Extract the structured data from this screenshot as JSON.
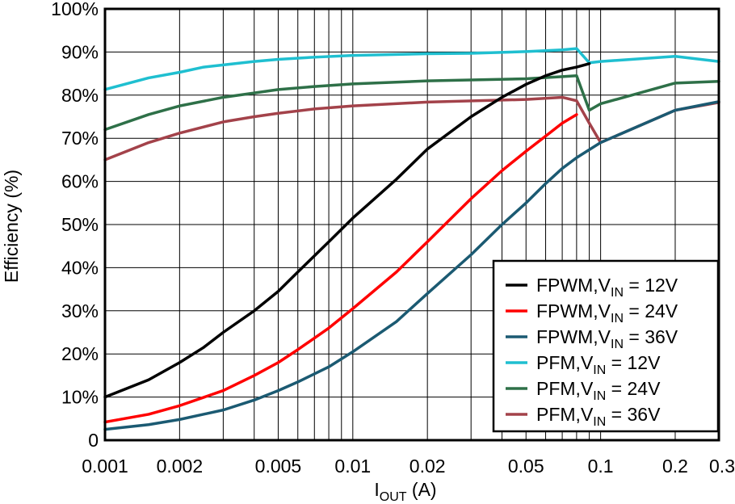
{
  "chart_data": {
    "type": "line",
    "title": "",
    "xlabel": {
      "main": "I",
      "sub": "OUT",
      "rest": " (A)"
    },
    "ylabel": "Efficiency (%)",
    "xscale": "log",
    "xlim": [
      0.001,
      0.3
    ],
    "ylim": [
      0,
      100
    ],
    "x_ticks": [
      {
        "value": 0.001,
        "label": "0.001"
      },
      {
        "value": 0.002,
        "label": "0.002"
      },
      {
        "value": 0.005,
        "label": "0.005"
      },
      {
        "value": 0.01,
        "label": "0.01"
      },
      {
        "value": 0.02,
        "label": "0.02"
      },
      {
        "value": 0.05,
        "label": "0.05"
      },
      {
        "value": 0.1,
        "label": "0.1"
      },
      {
        "value": 0.2,
        "label": "0.2"
      },
      {
        "value": 0.3,
        "label": "0.3"
      }
    ],
    "x_grid": [
      0.001,
      0.002,
      0.003,
      0.004,
      0.005,
      0.006,
      0.007,
      0.008,
      0.009,
      0.01,
      0.02,
      0.03,
      0.04,
      0.05,
      0.06,
      0.07,
      0.08,
      0.09,
      0.1,
      0.2,
      0.3
    ],
    "y_ticks": [
      {
        "value": 0,
        "label": "0"
      },
      {
        "value": 10,
        "label": "10%"
      },
      {
        "value": 20,
        "label": "20%"
      },
      {
        "value": 30,
        "label": "30%"
      },
      {
        "value": 40,
        "label": "40%"
      },
      {
        "value": 50,
        "label": "50%"
      },
      {
        "value": 60,
        "label": "60%"
      },
      {
        "value": 70,
        "label": "70%"
      },
      {
        "value": 80,
        "label": "80%"
      },
      {
        "value": 90,
        "label": "90%"
      },
      {
        "value": 100,
        "label": "100%"
      }
    ],
    "grid": true,
    "legend_position": "bottom-right",
    "series": [
      {
        "name": "FPWM,VIN = 12V",
        "legend": {
          "pre": "FPWM,V",
          "sub": "IN",
          "post": " = 12V"
        },
        "color": "#000000",
        "points": [
          [
            0.001,
            10
          ],
          [
            0.0015,
            14
          ],
          [
            0.002,
            18
          ],
          [
            0.0025,
            21.5
          ],
          [
            0.003,
            25
          ],
          [
            0.004,
            30
          ],
          [
            0.005,
            34.5
          ],
          [
            0.006,
            39
          ],
          [
            0.008,
            46
          ],
          [
            0.01,
            51.5
          ],
          [
            0.015,
            60.5
          ],
          [
            0.02,
            67.5
          ],
          [
            0.03,
            75
          ],
          [
            0.04,
            79.5
          ],
          [
            0.05,
            82.5
          ],
          [
            0.06,
            84.5
          ],
          [
            0.07,
            85.8
          ],
          [
            0.08,
            86.5
          ],
          [
            0.09,
            87.3
          ]
        ]
      },
      {
        "name": "FPWM,VIN = 24V",
        "legend": {
          "pre": "FPWM,V",
          "sub": "IN",
          "post": " = 24V"
        },
        "color": "#ff0000",
        "points": [
          [
            0.001,
            4.2
          ],
          [
            0.0015,
            6
          ],
          [
            0.002,
            8
          ],
          [
            0.003,
            11.5
          ],
          [
            0.004,
            15
          ],
          [
            0.005,
            18
          ],
          [
            0.006,
            21
          ],
          [
            0.008,
            26
          ],
          [
            0.01,
            30.5
          ],
          [
            0.015,
            39
          ],
          [
            0.02,
            46
          ],
          [
            0.03,
            56
          ],
          [
            0.04,
            62.5
          ],
          [
            0.05,
            67
          ],
          [
            0.06,
            70.5
          ],
          [
            0.07,
            73.5
          ],
          [
            0.08,
            75.5
          ]
        ]
      },
      {
        "name": "FPWM,VIN = 36V",
        "legend": {
          "pre": "FPWM,V",
          "sub": "IN",
          "post": " = 36V"
        },
        "color": "#1b5a72",
        "points": [
          [
            0.001,
            2.5
          ],
          [
            0.0015,
            3.6
          ],
          [
            0.002,
            4.8
          ],
          [
            0.003,
            7
          ],
          [
            0.004,
            9.3
          ],
          [
            0.005,
            11.5
          ],
          [
            0.006,
            13.5
          ],
          [
            0.008,
            17
          ],
          [
            0.01,
            20.5
          ],
          [
            0.015,
            27.5
          ],
          [
            0.02,
            34
          ],
          [
            0.03,
            43
          ],
          [
            0.04,
            50
          ],
          [
            0.05,
            55
          ],
          [
            0.06,
            59.5
          ],
          [
            0.07,
            63
          ],
          [
            0.08,
            65.5
          ],
          [
            0.1,
            69
          ],
          [
            0.2,
            76.5
          ],
          [
            0.3,
            78.5
          ]
        ]
      },
      {
        "name": "PFM,VIN = 12V",
        "legend": {
          "pre": "PFM,V",
          "sub": "IN",
          "post": " = 12V"
        },
        "color": "#1fbfd0",
        "points": [
          [
            0.001,
            81.3
          ],
          [
            0.0015,
            84
          ],
          [
            0.002,
            85.3
          ],
          [
            0.0025,
            86.5
          ],
          [
            0.003,
            87
          ],
          [
            0.004,
            87.8
          ],
          [
            0.005,
            88.3
          ],
          [
            0.007,
            88.8
          ],
          [
            0.01,
            89.2
          ],
          [
            0.02,
            89.6
          ],
          [
            0.03,
            89.7
          ],
          [
            0.05,
            90.1
          ],
          [
            0.07,
            90.5
          ],
          [
            0.08,
            90.8
          ],
          [
            0.09,
            87.5
          ],
          [
            0.1,
            87.8
          ],
          [
            0.2,
            89
          ],
          [
            0.3,
            87.8
          ]
        ]
      },
      {
        "name": "PFM,VIN = 24V",
        "legend": {
          "pre": "PFM,V",
          "sub": "IN",
          "post": " = 24V"
        },
        "color": "#2e7048",
        "points": [
          [
            0.001,
            72
          ],
          [
            0.0015,
            75.5
          ],
          [
            0.002,
            77.5
          ],
          [
            0.003,
            79.5
          ],
          [
            0.004,
            80.5
          ],
          [
            0.005,
            81.3
          ],
          [
            0.007,
            82
          ],
          [
            0.01,
            82.6
          ],
          [
            0.02,
            83.3
          ],
          [
            0.05,
            83.8
          ],
          [
            0.07,
            84.3
          ],
          [
            0.08,
            84.5
          ],
          [
            0.09,
            76.5
          ],
          [
            0.1,
            78
          ],
          [
            0.2,
            82.8
          ],
          [
            0.3,
            83.2
          ]
        ]
      },
      {
        "name": "PFM,VIN = 36V",
        "legend": {
          "pre": "PFM,V",
          "sub": "IN",
          "post": " = 36V"
        },
        "color": "#a3424a",
        "points": [
          [
            0.001,
            65
          ],
          [
            0.0015,
            69
          ],
          [
            0.002,
            71.2
          ],
          [
            0.003,
            73.8
          ],
          [
            0.004,
            75
          ],
          [
            0.005,
            75.8
          ],
          [
            0.007,
            76.8
          ],
          [
            0.01,
            77.5
          ],
          [
            0.02,
            78.4
          ],
          [
            0.05,
            79
          ],
          [
            0.07,
            79.5
          ],
          [
            0.08,
            78.7
          ],
          [
            0.09,
            73.5
          ],
          [
            0.1,
            69
          ],
          [
            0.2,
            76.5
          ],
          [
            0.3,
            78.3
          ]
        ]
      }
    ]
  }
}
